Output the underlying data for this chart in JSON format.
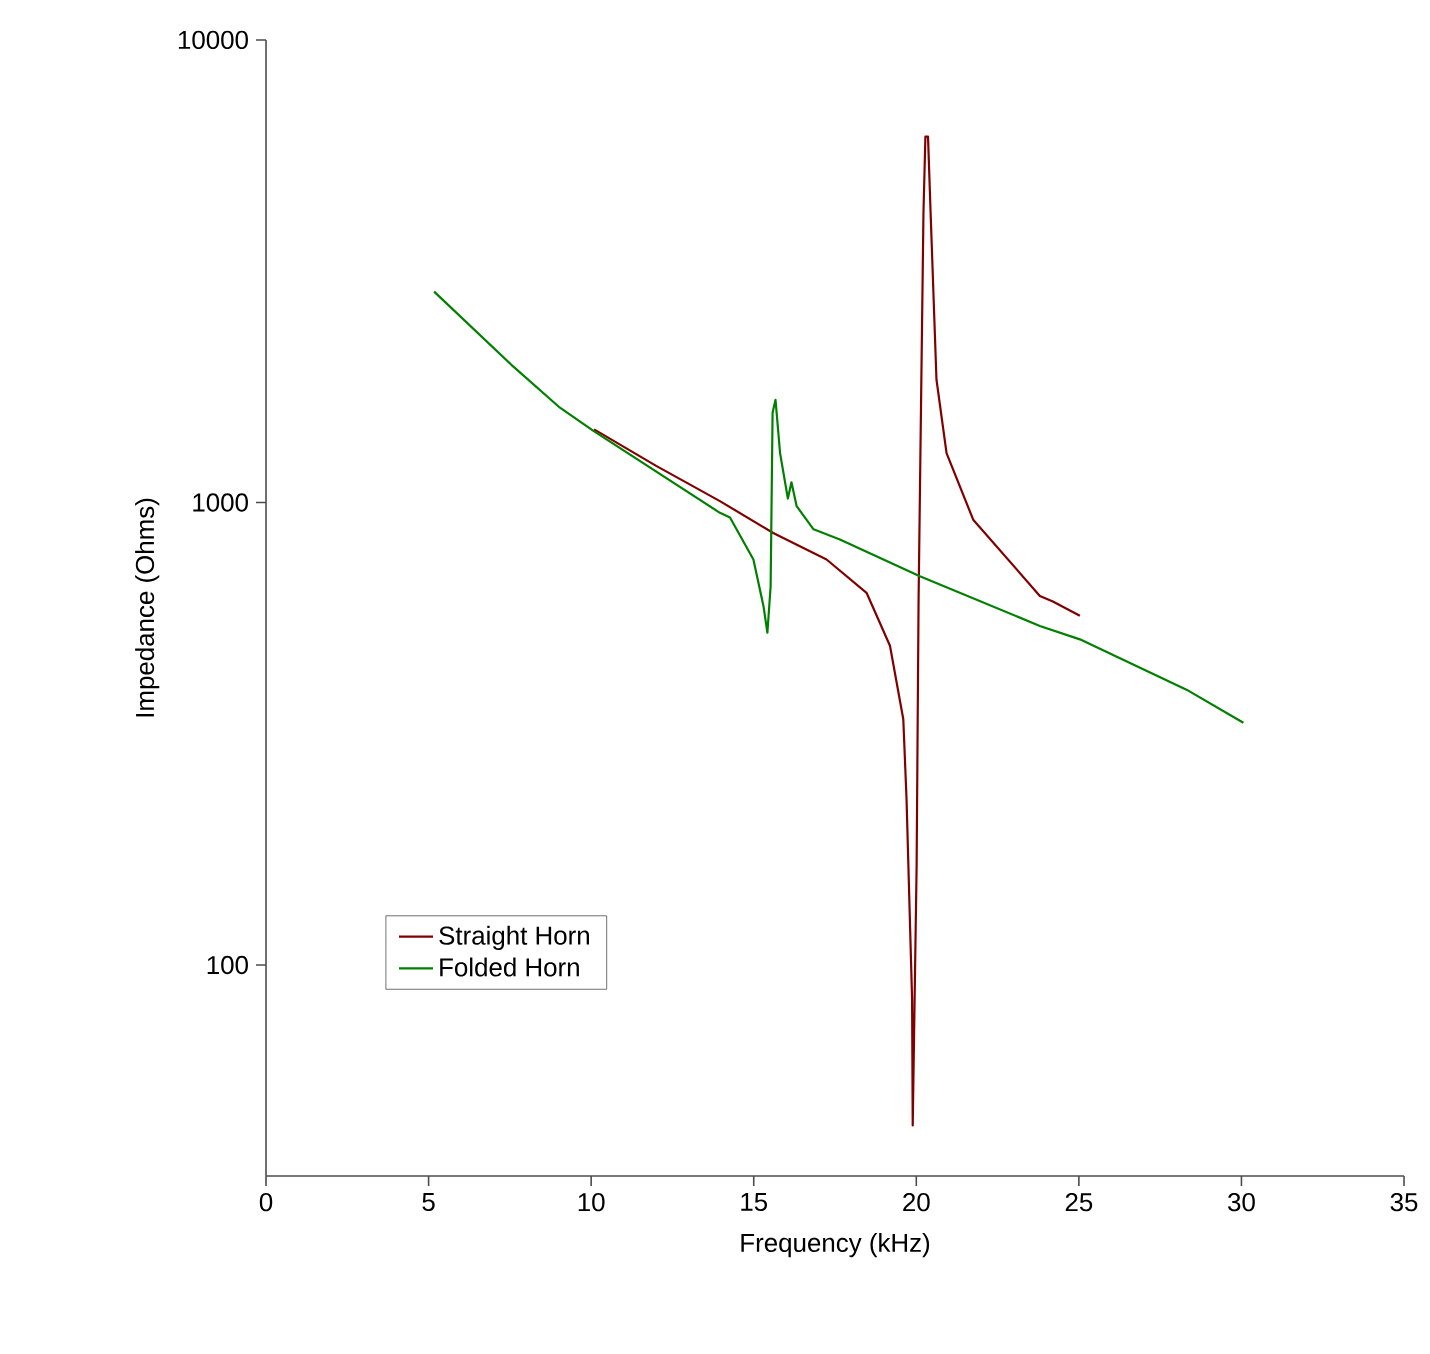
{
  "chart_data": {
    "type": "line",
    "xlabel": "Frequency (kHz)",
    "ylabel": "Impedance (Ohms)",
    "xlim": [
      0,
      35
    ],
    "xticks": [
      0,
      5,
      10,
      15,
      20,
      25,
      30,
      35
    ],
    "ylim": [
      35,
      10000
    ],
    "yticks": [
      100,
      1000,
      10000
    ],
    "log": "y",
    "legend": "bottom left",
    "line_style": "solid",
    "marker": "none",
    "series": [
      {
        "name": "Straight Horn",
        "color": "#800000",
        "x": [
          10.09,
          12.0,
          13.96,
          15.6,
          17.24,
          18.47,
          19.19,
          19.6,
          19.7,
          19.87,
          19.89,
          20.01,
          20.07,
          20.22,
          20.28,
          20.36,
          20.44,
          20.62,
          20.93,
          21.75,
          23.8,
          24.2,
          25.03
        ],
        "values": [
          1439,
          1200,
          1007,
          859,
          753,
          638,
          490,
          340,
          228,
          84.5,
          45,
          164,
          617,
          4228,
          6180,
          6180,
          4228,
          1845,
          1279,
          918,
          628,
          611,
          569
        ]
      },
      {
        "name": "Folded Horn",
        "color": "#008000",
        "x": [
          5.17,
          7.6,
          9.04,
          10.07,
          13.96,
          14.27,
          14.99,
          15.3,
          15.42,
          15.52,
          15.58,
          15.67,
          15.81,
          16.05,
          16.16,
          16.32,
          16.84,
          17.65,
          20.11,
          23.8,
          25.03,
          28.31,
          30.06
        ],
        "values": [
          2857,
          1969,
          1603,
          1428,
          950,
          928,
          753,
          597,
          523,
          659,
          1563,
          1668,
          1279,
          1020,
          1106,
          982,
          875,
          832,
          693,
          541,
          506,
          394,
          334
        ]
      }
    ]
  }
}
